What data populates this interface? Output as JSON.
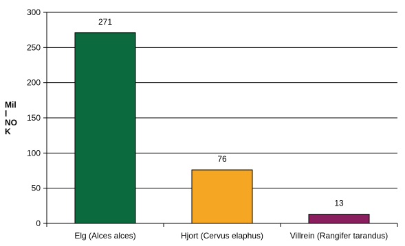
{
  "chart_data": {
    "type": "bar",
    "categories": [
      "Elg (Alces alces)",
      "Hjort (Cervus elaphus)",
      "Villrein (Rangifer tarandus)"
    ],
    "values": [
      271,
      76,
      13
    ],
    "data_labels": [
      "271",
      "76",
      "13"
    ],
    "colors": [
      "#0b6b3f",
      "#f5a623",
      "#8b1e5f"
    ],
    "title": "",
    "xlabel": "",
    "ylabel_lines": [
      "Mil",
      "l",
      "NO",
      "K"
    ],
    "ylim": [
      0,
      300
    ],
    "yticks": [
      0,
      50,
      100,
      150,
      200,
      250,
      300
    ],
    "grid": true,
    "legend": "none"
  }
}
